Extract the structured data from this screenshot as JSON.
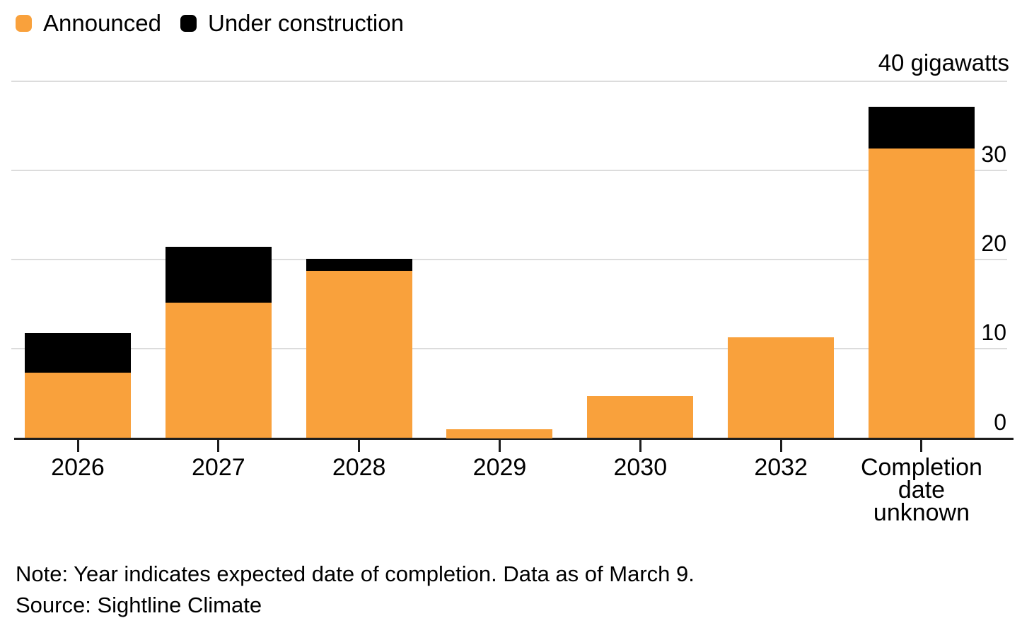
{
  "chart_data": {
    "type": "bar",
    "stacked": true,
    "title": "",
    "categories": [
      "2026",
      "2027",
      "2028",
      "2029",
      "2030",
      "2032",
      "Completion\ndate\nunknown"
    ],
    "series": [
      {
        "name": "Announced",
        "color": "#F9A13C",
        "values": [
          7.3,
          15.2,
          18.7,
          1.0,
          4.7,
          11.3,
          32.4
        ]
      },
      {
        "name": "Under construction",
        "color": "#000000",
        "values": [
          4.5,
          6.2,
          1.4,
          0,
          0,
          0,
          4.7
        ]
      }
    ],
    "xlabel": "",
    "ylabel": "gigawatts",
    "y_unit_label": "40 gigawatts",
    "yticks": [
      0,
      10,
      20,
      30
    ],
    "ylim": [
      0,
      40
    ],
    "grid": "horizontal",
    "legend_position": "top-left",
    "y_tick_label_side": "right"
  },
  "footer": {
    "note": "Note: Year indicates expected date of completion. Data as of March 9.",
    "source": "Source: Sightline Climate"
  },
  "colors": {
    "announced": "#F9A13C",
    "under_construction": "#000000",
    "gridline": "#DCDCDC",
    "axis": "#1D1D1D",
    "background": "#FFFFFF",
    "text": "#000000"
  }
}
